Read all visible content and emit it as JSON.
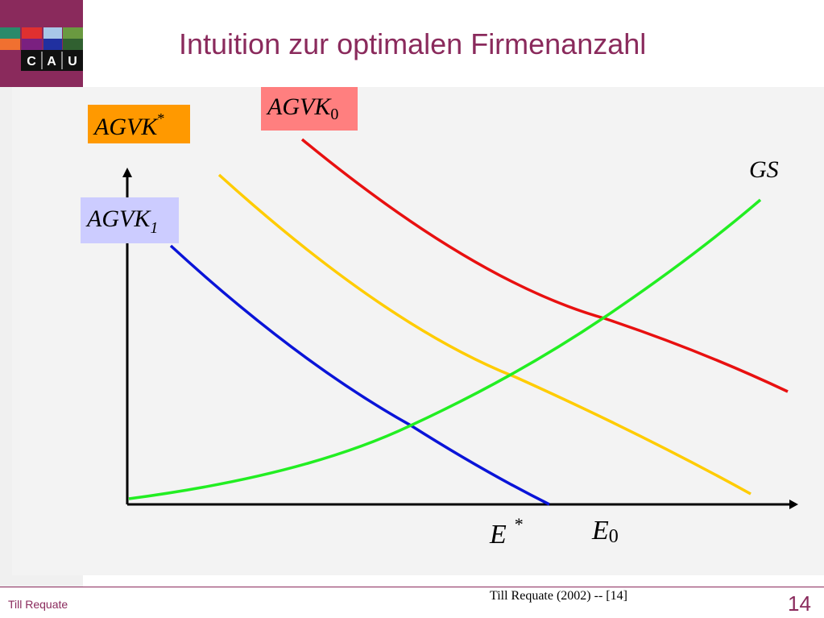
{
  "slide": {
    "title": "Intuition zur optimalen Firmenanzahl",
    "logo_text": [
      "C",
      "A",
      "U"
    ],
    "footer_left": "Till Requate",
    "footer_center": "Till Requate (2002) -- [14]",
    "page_number": "14"
  },
  "diagram": {
    "labels": {
      "agvk_star": {
        "base": "AGVK",
        "sup": "*",
        "bg": "#ff9900"
      },
      "agvk_0": {
        "base": "AGVK",
        "sub": "0",
        "bg": "#ff7f7f"
      },
      "agvk_1": {
        "base": "AGVK",
        "sub": "1",
        "bg": "#ccccff"
      },
      "gs": {
        "text": "GS"
      },
      "e_star": {
        "base": "E",
        "sup": "*"
      },
      "e_0": {
        "base": "E",
        "sub": "0"
      }
    },
    "colors": {
      "agvk_0": "#e81010",
      "agvk_star": "#ffcc00",
      "agvk_1": "#0a14d8",
      "gs": "#22ee22",
      "axes": "#000000",
      "accent": "#8a2a5c"
    }
  }
}
